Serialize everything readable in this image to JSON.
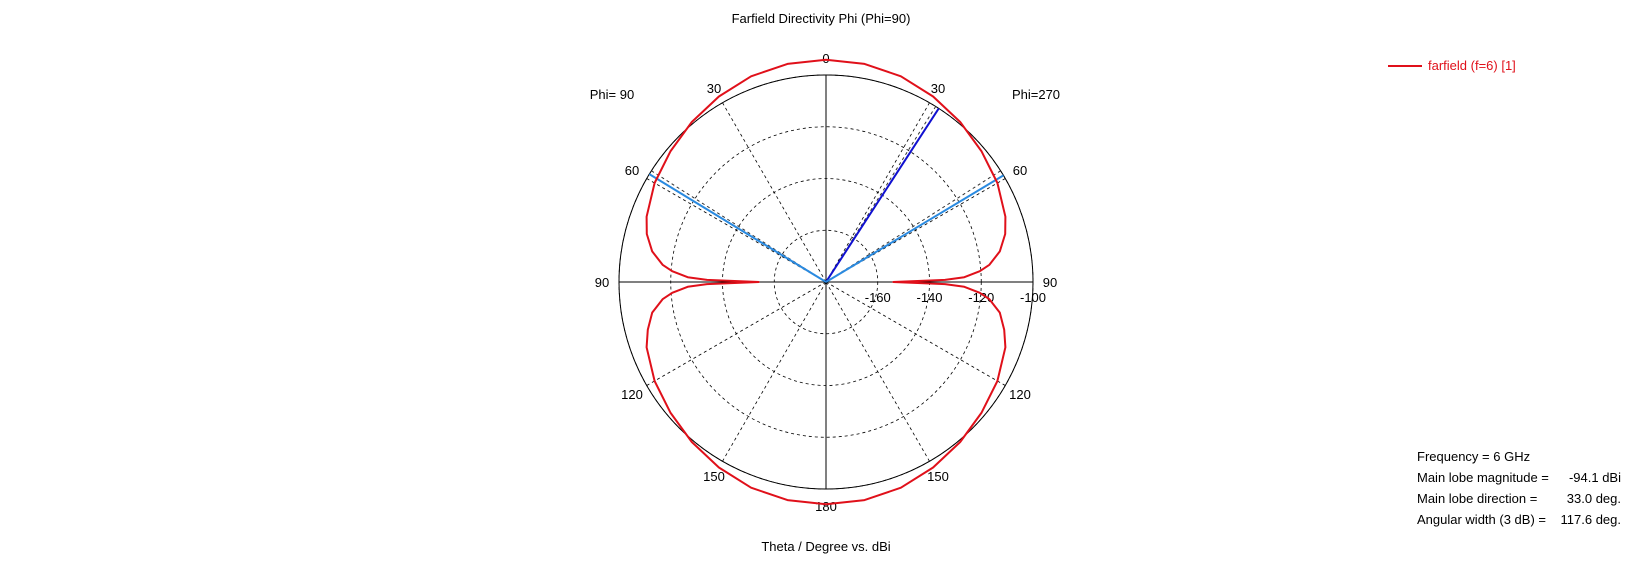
{
  "chart_data": {
    "type": "polar",
    "title": "Farfield Directivity Phi (Phi=90)",
    "xlabel": "Theta / Degree vs. dBi",
    "half_plane_labels": {
      "left": "Phi= 90",
      "right": "Phi=270"
    },
    "angle_ticks": [
      {
        "angle": 0,
        "label": "0"
      },
      {
        "angle": 30,
        "label": "30"
      },
      {
        "angle": 60,
        "label": "60"
      },
      {
        "angle": 90,
        "label": "90"
      },
      {
        "angle": 120,
        "label": "120"
      },
      {
        "angle": 150,
        "label": "150"
      },
      {
        "angle": 180,
        "label": "180"
      },
      {
        "angle": -30,
        "label": "30"
      },
      {
        "angle": -60,
        "label": "60"
      },
      {
        "angle": -90,
        "label": "90"
      },
      {
        "angle": -120,
        "label": "120"
      },
      {
        "angle": -150,
        "label": "150"
      }
    ],
    "radial_ticks": [
      {
        "value": -160,
        "label": "-160"
      },
      {
        "value": -140,
        "label": "-140"
      },
      {
        "value": -120,
        "label": "-120"
      },
      {
        "value": -100,
        "label": "-100"
      }
    ],
    "rlim": [
      -180,
      -100
    ],
    "grid": true,
    "series": [
      {
        "name": "farfield (f=6) [1]",
        "color": "#e0101a",
        "theta": [
          0,
          10,
          20,
          30,
          40,
          50,
          60,
          70,
          75,
          80,
          84,
          86,
          88,
          89,
          90,
          91,
          92,
          94,
          96,
          100,
          105,
          110,
          120,
          130,
          140,
          150,
          160,
          170,
          180
        ],
        "directivity_dbi": [
          -94.1,
          -94.4,
          -95.4,
          -97.2,
          -99.3,
          -101.5,
          -103.5,
          -106.2,
          -108.3,
          -111.8,
          -116.5,
          -120.4,
          -126.5,
          -134.0,
          -154.0,
          -134.0,
          -126.5,
          -120.4,
          -116.5,
          -111.8,
          -108.7,
          -106.2,
          -103.5,
          -101.5,
          -99.3,
          -97.2,
          -95.4,
          -94.4,
          -94.1
        ]
      }
    ],
    "markers": [
      {
        "kind": "main-lobe",
        "angle": -33,
        "color": "#1010d0",
        "dashed_angle": -32
      },
      {
        "kind": "beamwidth",
        "angle": -59,
        "color": "#2a8ae0",
        "dashed_angle": -57.5
      },
      {
        "kind": "beamwidth",
        "angle": 58.6,
        "color": "#2a8ae0",
        "dashed_angle": 57.5
      }
    ],
    "info": [
      {
        "label": "Frequency = 6 GHz",
        "value": ""
      },
      {
        "label": "Main lobe magnitude =",
        "value": "-94.1 dBi"
      },
      {
        "label": "Main lobe direction =",
        "value": "33.0 deg."
      },
      {
        "label": "Angular width (3 dB) =",
        "value": "117.6 deg."
      }
    ]
  }
}
